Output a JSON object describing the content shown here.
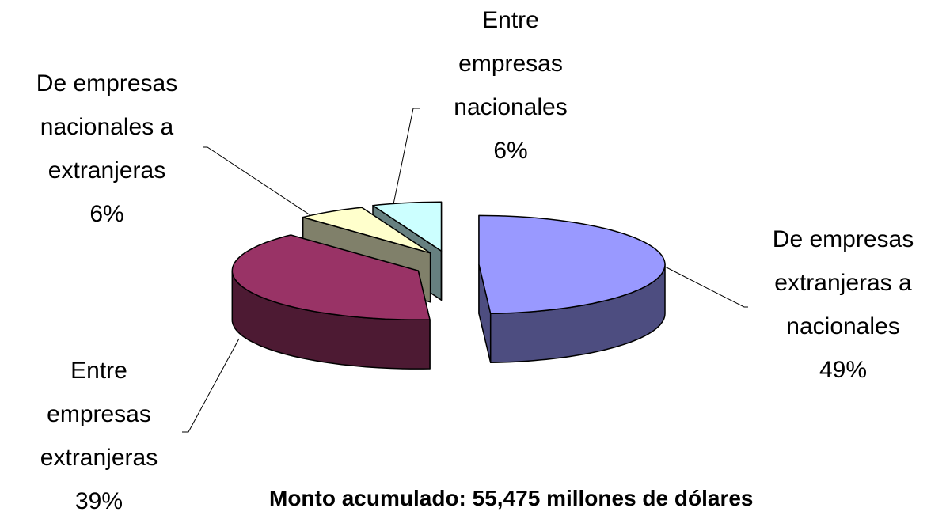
{
  "chart_data": {
    "type": "pie3d",
    "categories": [
      "De empresas extranjeras a nacionales",
      "Entre empresas extranjeras",
      "De empresas nacionales a extranjeras",
      "Entre empresas nacionales"
    ],
    "values": [
      49,
      39,
      6,
      6
    ],
    "value_labels": [
      "49%",
      "39%",
      "6%",
      "6%"
    ],
    "colors": [
      "#9999ff",
      "#993366",
      "#ffffcc",
      "#ccffff"
    ],
    "side_colors": [
      "#4d4d80",
      "#4d1a33",
      "#80806a",
      "#668080"
    ],
    "annotation": "Monto acumulado: 55,475 millones de dólares"
  }
}
